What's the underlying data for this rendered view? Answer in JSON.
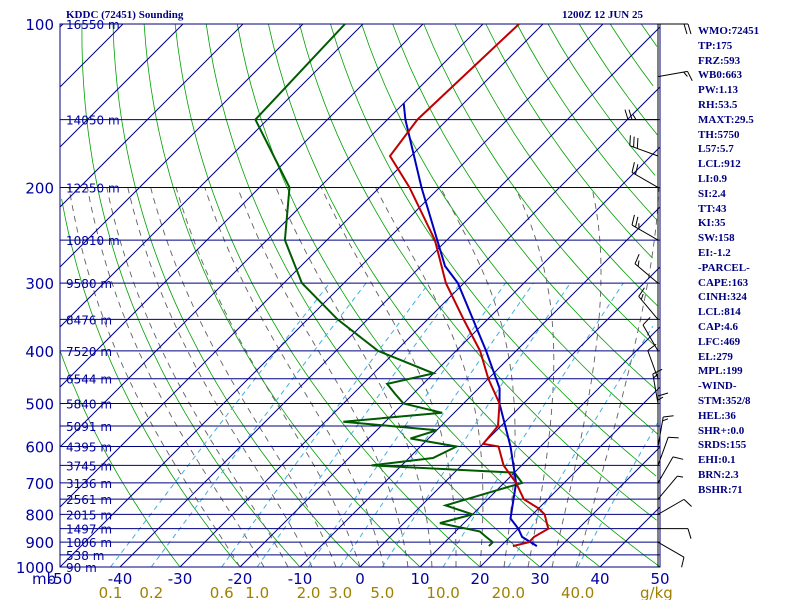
{
  "header": {
    "station": "KDDC (72451) Sounding",
    "time": "1200Z 12 JUN 25"
  },
  "indices": [
    "WMO:72451",
    "TP:175",
    "FRZ:593",
    "WB0:663",
    "PW:1.13",
    "RH:53.5",
    "MAXT:29.5",
    "TH:5750",
    "L57:5.7",
    "LCL:912",
    "LI:0.9",
    "SI:2.4",
    "TT:43",
    "KI:35",
    "SW:158",
    "EI:-1.2",
    "-PARCEL-",
    "CAPE:163",
    "CINH:324",
    "LCL:814",
    "CAP:4.6",
    "LFC:469",
    "EL:279",
    "MPL:199",
    "-WIND-",
    "STM:352/8",
    "HEL:36",
    "SHR+:0.0",
    "SRDS:155",
    "EHI:0.1",
    "BRN:2.3",
    "BSHR:71"
  ],
  "chart_data": {
    "type": "line",
    "style": "Skew-T log-P sounding diagram",
    "colors": {
      "temperature": "#c00000",
      "dewpoint": "#005a00",
      "parcel": "#0000c0",
      "axis_text": "#0000a0",
      "isobar": "#000080",
      "isotherm": "#000080",
      "dry_adiabat": "#00a000",
      "moist_adiabat": "#606060",
      "mixing_ratio": "#40b0e0",
      "mixing_ratio_labels": "#a08000"
    },
    "pressure_axis": {
      "range_hPa": [
        1000,
        100
      ],
      "scale": "log",
      "ticks": [
        {
          "p": 100,
          "label": "100"
        },
        {
          "p": 200,
          "label": "200"
        },
        {
          "p": 300,
          "label": "300"
        },
        {
          "p": 400,
          "label": "400"
        },
        {
          "p": 500,
          "label": "500"
        },
        {
          "p": 600,
          "label": "600"
        },
        {
          "p": 700,
          "label": "700"
        },
        {
          "p": 800,
          "label": "800"
        },
        {
          "p": 900,
          "label": "900"
        },
        {
          "p": 1000,
          "label": "1000"
        }
      ]
    },
    "height_levels": [
      {
        "p": 100,
        "label": "16550 m"
      },
      {
        "p": 150,
        "label": "14050 m"
      },
      {
        "p": 200,
        "label": "12250 m"
      },
      {
        "p": 250,
        "label": "10810 m"
      },
      {
        "p": 300,
        "label": "9580 m"
      },
      {
        "p": 350,
        "label": "8476 m"
      },
      {
        "p": 400,
        "label": "7520 m"
      },
      {
        "p": 450,
        "label": "6544 m"
      },
      {
        "p": 500,
        "label": "5840 m"
      },
      {
        "p": 550,
        "label": "5091 m"
      },
      {
        "p": 600,
        "label": "4395 m"
      },
      {
        "p": 650,
        "label": "3745 m"
      },
      {
        "p": 700,
        "label": "3136 m"
      },
      {
        "p": 750,
        "label": "2561 m"
      },
      {
        "p": 800,
        "label": "2015 m"
      },
      {
        "p": 850,
        "label": "1497 m"
      },
      {
        "p": 900,
        "label": "1006 m"
      },
      {
        "p": 950,
        "label": "538 m"
      },
      {
        "p": 1000,
        "label": "90 m"
      }
    ],
    "temperature_axis": {
      "unit_label": "mb",
      "range_C_at_1000hPa": [
        -50,
        50
      ],
      "ticks": [
        {
          "t": -50,
          "label": "-50"
        },
        {
          "t": -40,
          "label": "-40"
        },
        {
          "t": -30,
          "label": "-30"
        },
        {
          "t": -20,
          "label": "-20"
        },
        {
          "t": -10,
          "label": "-10"
        },
        {
          "t": 0,
          "label": "0"
        },
        {
          "t": 10,
          "label": "10"
        },
        {
          "t": 20,
          "label": "20"
        },
        {
          "t": 30,
          "label": "30"
        },
        {
          "t": 40,
          "label": "40"
        },
        {
          "t": 50,
          "label": "50"
        }
      ]
    },
    "mixing_ratio_axis": {
      "unit_label": "g/kg",
      "ticks": [
        {
          "w": 0.1,
          "label": "0.1"
        },
        {
          "w": 0.2,
          "label": "0.2"
        },
        {
          "w": 0.6,
          "label": "0.6"
        },
        {
          "w": 1.0,
          "label": "1.0"
        },
        {
          "w": 2.0,
          "label": "2.0"
        },
        {
          "w": 3.0,
          "label": "3.0"
        },
        {
          "w": 5.0,
          "label": "5.0"
        },
        {
          "w": 10.0,
          "label": "10.0"
        },
        {
          "w": 20.0,
          "label": "20.0"
        },
        {
          "w": 40.0,
          "label": "40.0"
        }
      ]
    },
    "temperature_profile": [
      {
        "p": 100,
        "t": -64
      },
      {
        "p": 150,
        "t": -65
      },
      {
        "p": 175,
        "t": -63.5
      },
      {
        "p": 200,
        "t": -55
      },
      {
        "p": 250,
        "t": -42
      },
      {
        "p": 300,
        "t": -33
      },
      {
        "p": 350,
        "t": -24
      },
      {
        "p": 400,
        "t": -16
      },
      {
        "p": 450,
        "t": -10
      },
      {
        "p": 500,
        "t": -4
      },
      {
        "p": 550,
        "t": -0.5
      },
      {
        "p": 593,
        "t": 0
      },
      {
        "p": 600,
        "t": 3
      },
      {
        "p": 650,
        "t": 7
      },
      {
        "p": 700,
        "t": 12
      },
      {
        "p": 750,
        "t": 16
      },
      {
        "p": 780,
        "t": 20
      },
      {
        "p": 800,
        "t": 22
      },
      {
        "p": 850,
        "t": 25
      },
      {
        "p": 880,
        "t": 24
      },
      {
        "p": 900,
        "t": 24
      },
      {
        "p": 915,
        "t": 22
      }
    ],
    "dewpoint_profile": [
      {
        "p": 100,
        "t": -93
      },
      {
        "p": 150,
        "t": -92
      },
      {
        "p": 200,
        "t": -75
      },
      {
        "p": 250,
        "t": -67
      },
      {
        "p": 300,
        "t": -57
      },
      {
        "p": 350,
        "t": -45
      },
      {
        "p": 400,
        "t": -33
      },
      {
        "p": 440,
        "t": -20
      },
      {
        "p": 460,
        "t": -26
      },
      {
        "p": 480,
        "t": -23
      },
      {
        "p": 500,
        "t": -20
      },
      {
        "p": 520,
        "t": -12
      },
      {
        "p": 540,
        "t": -27
      },
      {
        "p": 560,
        "t": -10
      },
      {
        "p": 580,
        "t": -13
      },
      {
        "p": 600,
        "t": -4
      },
      {
        "p": 630,
        "t": -6
      },
      {
        "p": 650,
        "t": -15
      },
      {
        "p": 670,
        "t": 10
      },
      {
        "p": 700,
        "t": 13
      },
      {
        "p": 730,
        "t": 9
      },
      {
        "p": 770,
        "t": 4
      },
      {
        "p": 800,
        "t": 10
      },
      {
        "p": 830,
        "t": 6
      },
      {
        "p": 860,
        "t": 14
      },
      {
        "p": 880,
        "t": 16
      },
      {
        "p": 900,
        "t": 18
      },
      {
        "p": 915,
        "t": 18
      }
    ],
    "parcel_profile": [
      {
        "p": 915,
        "t": 26
      },
      {
        "p": 880,
        "t": 22
      },
      {
        "p": 850,
        "t": 20
      },
      {
        "p": 814,
        "t": 17
      },
      {
        "p": 700,
        "t": 12
      },
      {
        "p": 600,
        "t": 5
      },
      {
        "p": 500,
        "t": -4
      },
      {
        "p": 469,
        "t": -6.5
      },
      {
        "p": 400,
        "t": -15
      },
      {
        "p": 300,
        "t": -31
      },
      {
        "p": 279,
        "t": -36
      },
      {
        "p": 200,
        "t": -53
      },
      {
        "p": 150,
        "t": -67
      },
      {
        "p": 140,
        "t": -70
      }
    ],
    "wind_barbs": [
      {
        "p": 100,
        "dir": 90,
        "kt": 20
      },
      {
        "p": 125,
        "dir": 80,
        "kt": 15
      },
      {
        "p": 150,
        "dir": 270,
        "kt": 25
      },
      {
        "p": 175,
        "dir": 290,
        "kt": 30
      },
      {
        "p": 200,
        "dir": 300,
        "kt": 20
      },
      {
        "p": 250,
        "dir": 300,
        "kt": 25
      },
      {
        "p": 300,
        "dir": 310,
        "kt": 15
      },
      {
        "p": 350,
        "dir": 320,
        "kt": 15
      },
      {
        "p": 400,
        "dir": 330,
        "kt": 10
      },
      {
        "p": 450,
        "dir": 340,
        "kt": 10
      },
      {
        "p": 500,
        "dir": 350,
        "kt": 15
      },
      {
        "p": 550,
        "dir": 0,
        "kt": 15
      },
      {
        "p": 600,
        "dir": 10,
        "kt": 15
      },
      {
        "p": 650,
        "dir": 20,
        "kt": 10
      },
      {
        "p": 700,
        "dir": 30,
        "kt": 10
      },
      {
        "p": 750,
        "dir": 40,
        "kt": 5
      },
      {
        "p": 800,
        "dir": 60,
        "kt": 10
      },
      {
        "p": 850,
        "dir": 90,
        "kt": 10
      },
      {
        "p": 900,
        "dir": 120,
        "kt": 10
      }
    ]
  }
}
